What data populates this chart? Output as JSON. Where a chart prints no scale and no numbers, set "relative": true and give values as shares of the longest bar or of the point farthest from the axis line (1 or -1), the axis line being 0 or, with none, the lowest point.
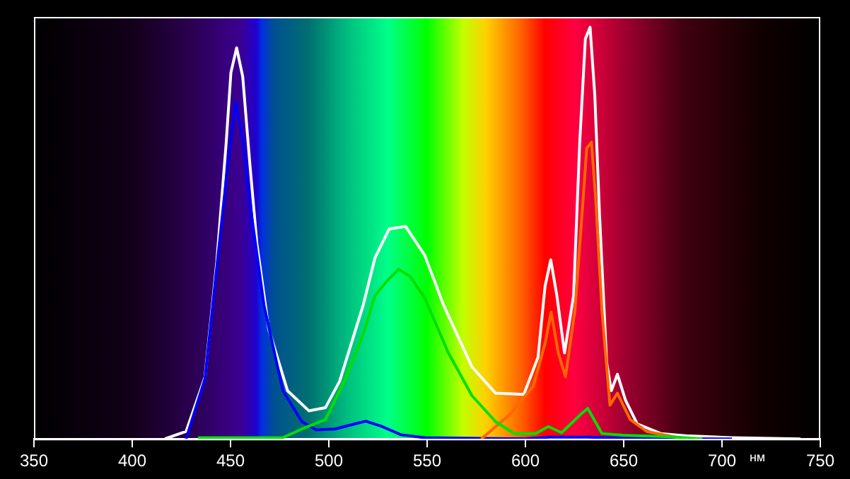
{
  "chart_data": {
    "type": "line",
    "relative": true,
    "xlabel": "нм",
    "xlim": [
      350,
      750
    ],
    "xticks": [
      350,
      400,
      450,
      500,
      550,
      600,
      650,
      700,
      750
    ],
    "grid": false,
    "legend": false,
    "marker": "none",
    "line_style": "solid",
    "series": [
      {
        "color": "#00e000",
        "x": [
          433.4,
          476.6,
          486.3,
          498.3,
          507.9,
          517.5,
          523.5,
          529.5,
          535.5,
          541.5,
          548.8,
          560.8,
          572.8,
          584.8,
          594.4,
          605.2,
          611.7,
          618.4,
          628,
          631.7,
          638.9,
          649.7,
          673.7,
          690
        ],
        "values": [
          0.003,
          0.003,
          0.024,
          0.047,
          0.14,
          0.255,
          0.348,
          0.383,
          0.412,
          0.394,
          0.342,
          0.209,
          0.105,
          0.042,
          0.013,
          0.013,
          0.03,
          0.015,
          0.059,
          0.074,
          0.013,
          0.009,
          0.005,
          0
        ]
      },
      {
        "color": "#ff6600",
        "x": [
          577.6,
          592,
          604,
          610,
          613.1,
          616.7,
          620.4,
          625.2,
          629.3,
          631.2,
          633.6,
          635.8,
          638.9,
          643,
          646.8,
          653.3,
          661.7,
          680.9
        ],
        "values": [
          0,
          0.059,
          0.128,
          0.232,
          0.308,
          0.209,
          0.151,
          0.313,
          0.579,
          0.706,
          0.721,
          0.579,
          0.313,
          0.082,
          0.111,
          0.047,
          0.018,
          0
        ]
      },
      {
        "color": "#0000ff",
        "x": [
          427.4,
          437,
          443,
          449,
          452.6,
          456.2,
          461,
          467,
          476.6,
          486.3,
          493.5,
          503.1,
          518.7,
          527.1,
          536.7,
          548.8,
          600,
          612,
          632,
          650,
          705
        ],
        "values": [
          0,
          0.146,
          0.417,
          0.683,
          0.82,
          0.73,
          0.533,
          0.325,
          0.117,
          0.042,
          0.022,
          0.024,
          0.043,
          0.03,
          0.01,
          0.003,
          0,
          0.004,
          0.004,
          0.001,
          0
        ]
      },
      {
        "color": "#ffffff",
        "x": [
          416.6,
          427.4,
          437,
          443,
          447.8,
          450.2,
          453.1,
          456.2,
          459.8,
          463.4,
          469.4,
          479,
          489.9,
          498.3,
          505.5,
          517.5,
          523.5,
          530.7,
          539.1,
          548.8,
          558.4,
          572.8,
          584.8,
          599.2,
          606.4,
          610,
          612.9,
          616,
          619.9,
          624.5,
          627.6,
          630.5,
          632.9,
          635.3,
          637.7,
          641.3,
          643.7,
          646.8,
          650.9,
          656.9,
          668.9,
          683.3,
          705,
          739.9
        ],
        "values": [
          0,
          0.018,
          0.15,
          0.43,
          0.72,
          0.89,
          0.95,
          0.88,
          0.67,
          0.475,
          0.267,
          0.117,
          0.068,
          0.076,
          0.14,
          0.325,
          0.44,
          0.51,
          0.516,
          0.446,
          0.325,
          0.175,
          0.111,
          0.108,
          0.198,
          0.371,
          0.435,
          0.348,
          0.209,
          0.348,
          0.718,
          0.972,
          1,
          0.834,
          0.545,
          0.186,
          0.117,
          0.157,
          0.094,
          0.036,
          0.013,
          0.007,
          0.003,
          0
        ]
      }
    ]
  }
}
